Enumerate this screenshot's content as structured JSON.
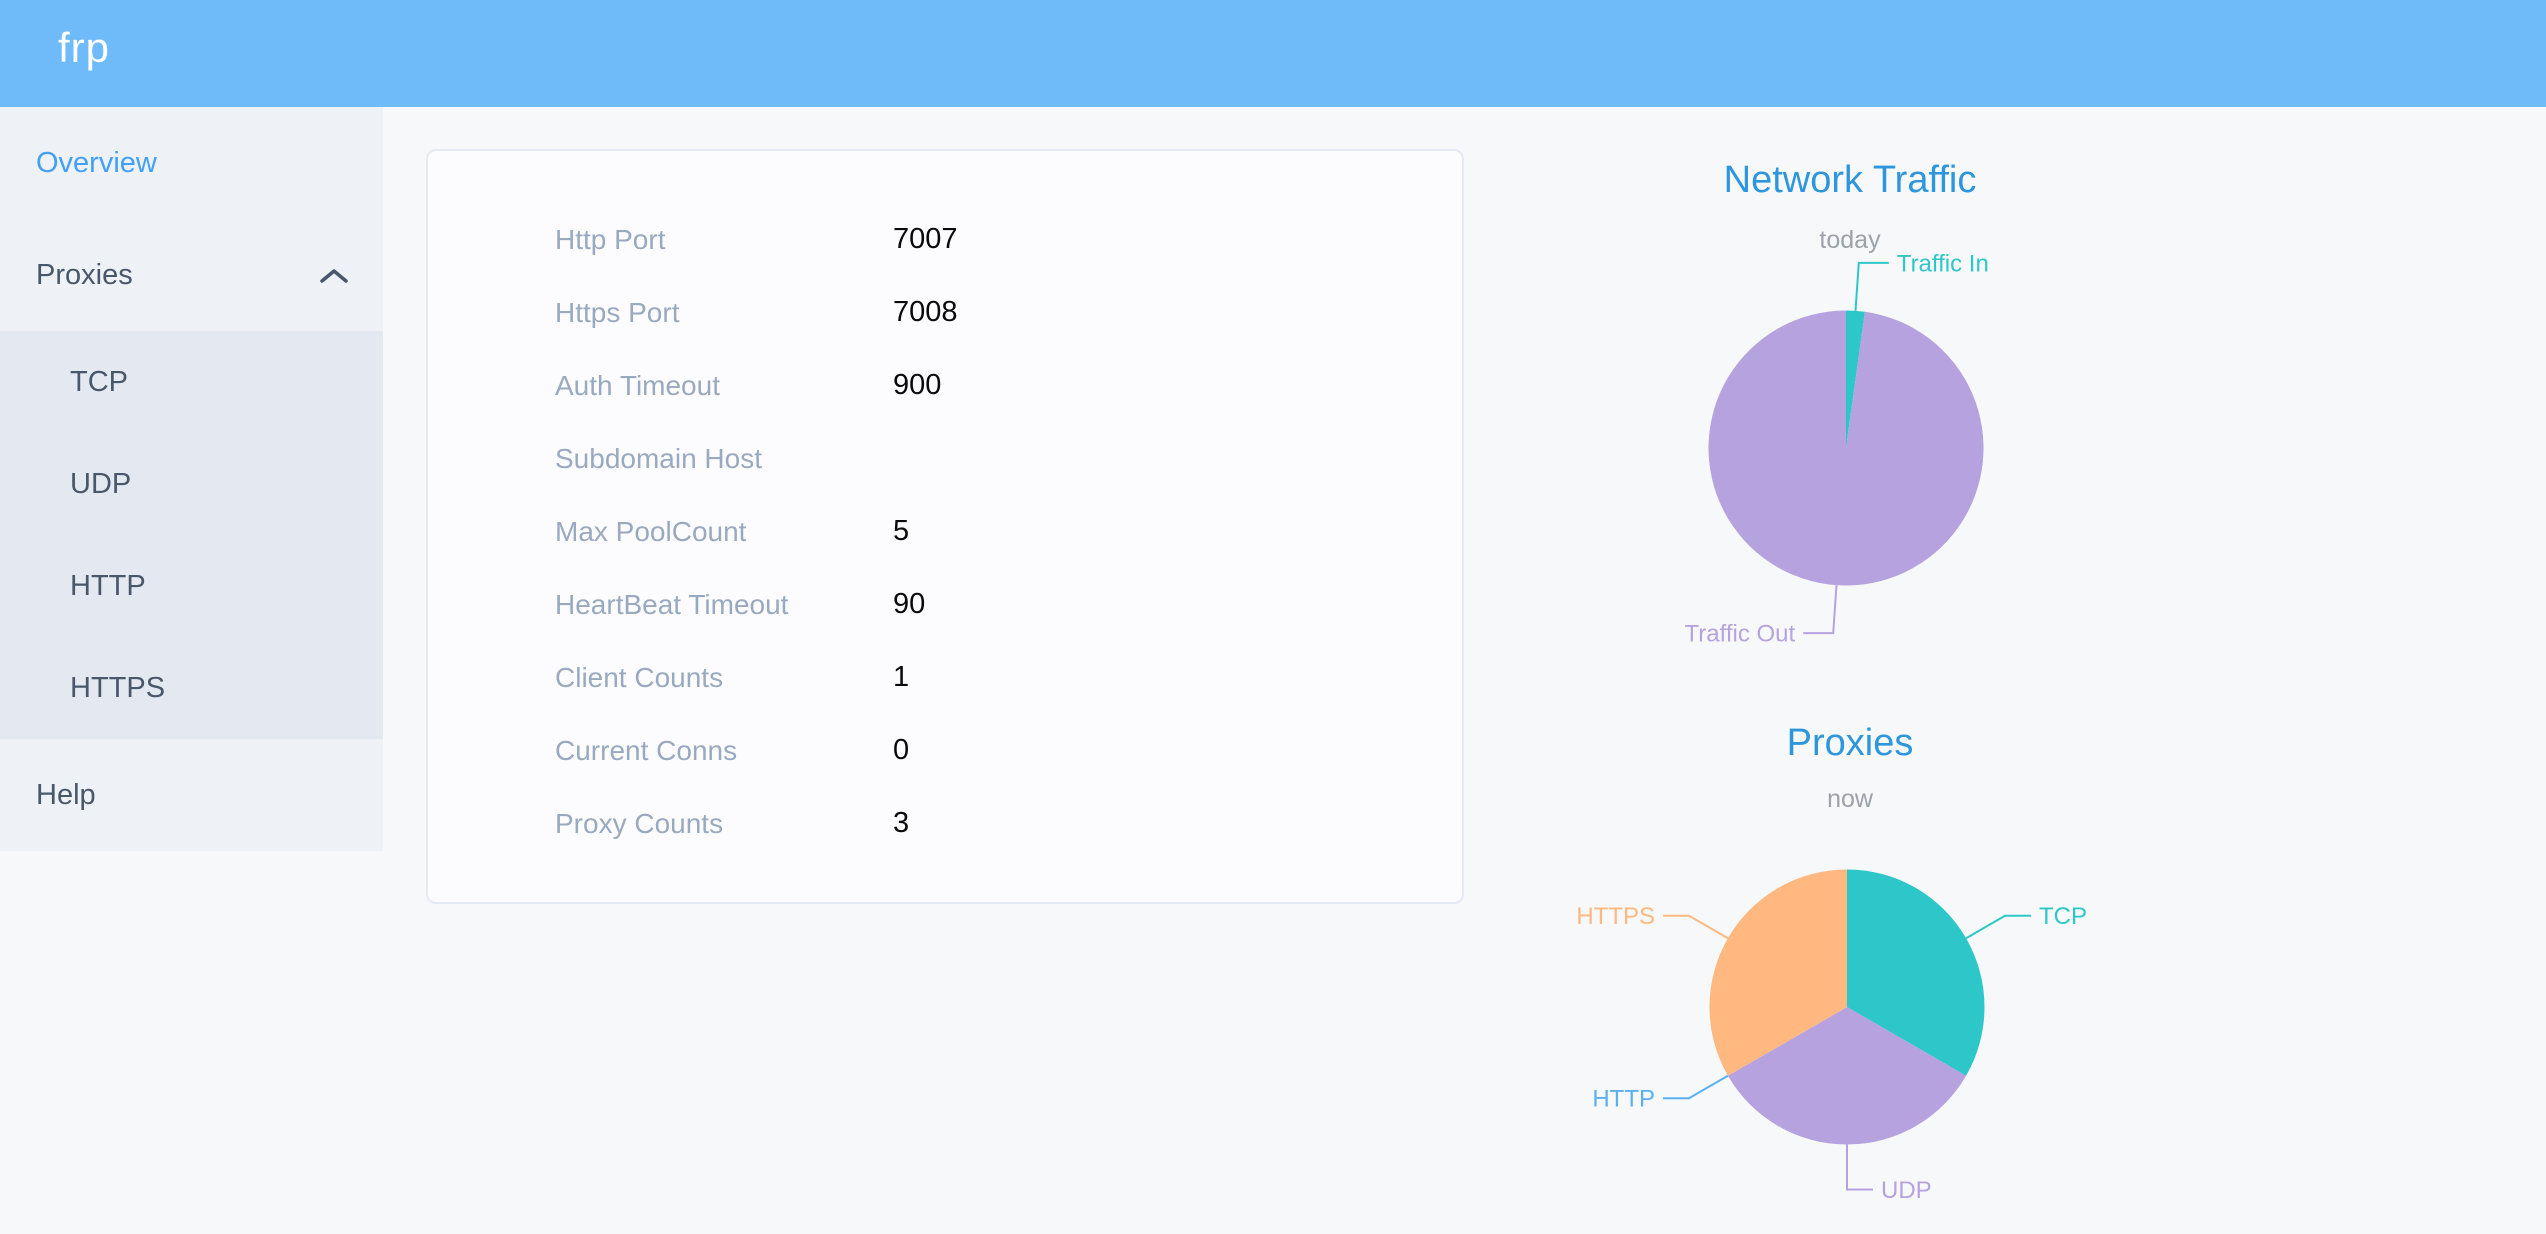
{
  "header": {
    "logo_text": "frp"
  },
  "sidebar": {
    "overview_label": "Overview",
    "proxies_label": "Proxies",
    "proxy_types": [
      "TCP",
      "UDP",
      "HTTP",
      "HTTPS"
    ],
    "help_label": "Help"
  },
  "server_info_card": {
    "rows": [
      {
        "label": "Http Port",
        "value": "7007"
      },
      {
        "label": "Https Port",
        "value": "7008"
      },
      {
        "label": "Auth Timeout",
        "value": "900"
      },
      {
        "label": "Subdomain Host",
        "value": ""
      },
      {
        "label": "Max PoolCount",
        "value": "5"
      },
      {
        "label": "HeartBeat Timeout",
        "value": "90"
      },
      {
        "label": "Client Counts",
        "value": "1"
      },
      {
        "label": "Current Conns",
        "value": "0"
      },
      {
        "label": "Proxy Counts",
        "value": "3"
      }
    ]
  },
  "chart_data": [
    {
      "type": "pie",
      "title": "Network Traffic",
      "subtitle": "today",
      "legend_position": "none",
      "values_unit": "percent share, estimated from arc angles",
      "series": [
        {
          "name": "Traffic In",
          "value": 2.2,
          "color": "#2ec7c9"
        },
        {
          "name": "Traffic Out",
          "value": 97.8,
          "color": "#b6a2de"
        }
      ],
      "layout": {
        "center": [
          296,
          308
        ],
        "radius": 137.5,
        "start_angle_deg": 0,
        "label_line": [
          48,
          30
        ],
        "label_font_size": 24
      }
    },
    {
      "type": "pie",
      "title": "Proxies",
      "subtitle": "now",
      "legend_position": "none",
      "values_unit": "proxy count",
      "series": [
        {
          "name": "TCP",
          "value": 1,
          "color": "#2ec7c9"
        },
        {
          "name": "UDP",
          "value": 1,
          "color": "#b6a2de"
        },
        {
          "name": "HTTP",
          "value": 0,
          "color": "#5ab1ef"
        },
        {
          "name": "HTTPS",
          "value": 1,
          "color": "#ffb980"
        }
      ],
      "layout": {
        "center": [
          297,
          317
        ],
        "radius": 137.5,
        "start_angle_deg": 0,
        "label_line": [
          45,
          26
        ],
        "label_font_size": 24
      }
    }
  ],
  "colors": {
    "header_bg": "#6fbbfa",
    "logo_text": "#ffffff",
    "page_bg": "#f7f8fa",
    "sidebar_bg": "#eef1f6",
    "submenu_bg": "#e4e8f1",
    "menu_text": "#48576a",
    "active_menu_text": "#42a0f5",
    "card_bg": "#fcfcfe",
    "card_border": "#e5e9f4",
    "form_label": "#99a9bf",
    "form_value": "#0a0a0a",
    "chart_title": "#2e96dc",
    "chart_subtitle": "#9da1a8"
  }
}
